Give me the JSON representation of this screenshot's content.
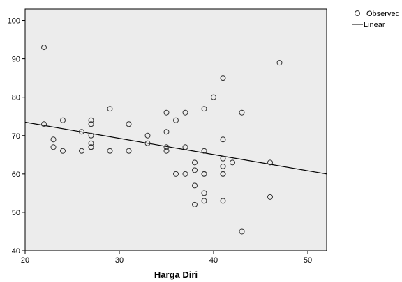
{
  "chart_data": {
    "type": "scatter",
    "title": "",
    "xlabel": "Harga Diri",
    "ylabel": "",
    "xlim": [
      20,
      52
    ],
    "ylim": [
      40,
      103
    ],
    "x_ticks": [
      20,
      30,
      40,
      50
    ],
    "y_ticks": [
      40,
      50,
      60,
      70,
      80,
      90,
      100
    ],
    "grid": false,
    "legend_position": "top-right",
    "colors": {
      "plot_background": "#ececec",
      "marker": "#333333",
      "line": "#000000"
    },
    "series": [
      {
        "name": "Observed",
        "kind": "scatter",
        "points": [
          [
            22,
            93
          ],
          [
            22,
            73
          ],
          [
            23,
            69
          ],
          [
            23,
            67
          ],
          [
            24,
            74
          ],
          [
            24,
            66
          ],
          [
            26,
            71
          ],
          [
            26,
            66
          ],
          [
            27,
            74
          ],
          [
            27,
            73
          ],
          [
            27,
            70
          ],
          [
            27,
            68
          ],
          [
            27,
            67
          ],
          [
            27,
            67
          ],
          [
            29,
            77
          ],
          [
            29,
            66
          ],
          [
            31,
            73
          ],
          [
            31,
            66
          ],
          [
            33,
            70
          ],
          [
            33,
            68
          ],
          [
            35,
            76
          ],
          [
            35,
            71
          ],
          [
            35,
            67
          ],
          [
            35,
            66
          ],
          [
            36,
            74
          ],
          [
            36,
            60
          ],
          [
            37,
            76
          ],
          [
            37,
            67
          ],
          [
            37,
            60
          ],
          [
            38,
            63
          ],
          [
            38,
            61
          ],
          [
            38,
            57
          ],
          [
            38,
            52
          ],
          [
            39,
            77
          ],
          [
            39,
            66
          ],
          [
            39,
            60
          ],
          [
            39,
            60
          ],
          [
            39,
            55
          ],
          [
            39,
            53
          ],
          [
            40,
            80
          ],
          [
            41,
            85
          ],
          [
            41,
            69
          ],
          [
            41,
            64
          ],
          [
            41,
            62
          ],
          [
            41,
            62
          ],
          [
            41,
            60
          ],
          [
            41,
            60
          ],
          [
            41,
            53
          ],
          [
            42,
            63
          ],
          [
            43,
            76
          ],
          [
            43,
            45
          ],
          [
            46,
            63
          ],
          [
            46,
            54
          ],
          [
            47,
            89
          ]
        ]
      },
      {
        "name": "Linear",
        "kind": "line",
        "points": [
          [
            20,
            73.5
          ],
          [
            52,
            60
          ]
        ]
      }
    ]
  }
}
